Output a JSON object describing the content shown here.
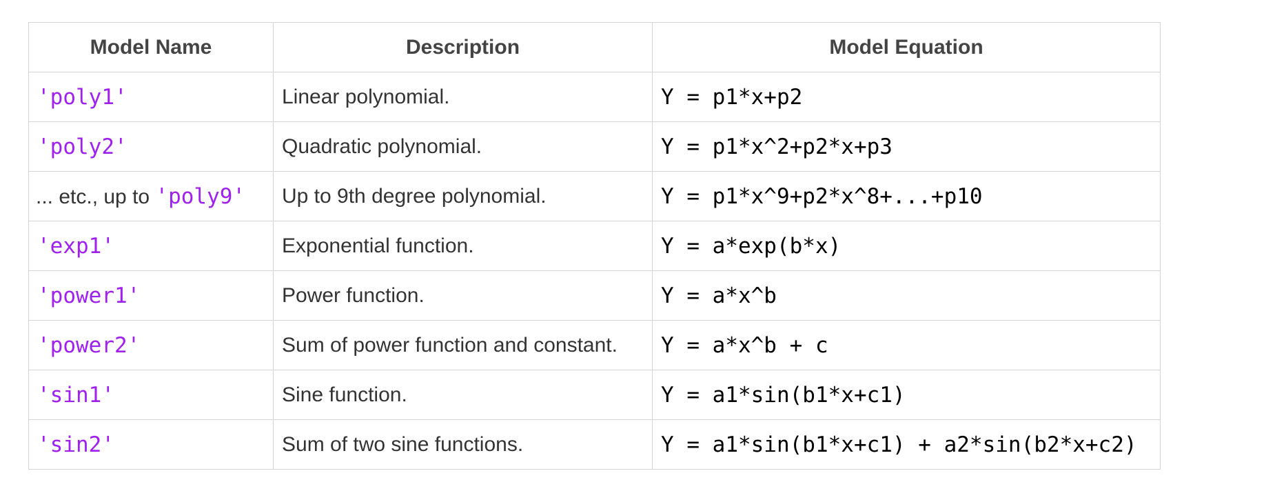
{
  "table": {
    "headers": {
      "model_name": "Model Name",
      "description": "Description",
      "equation": "Model Equation"
    },
    "rows": [
      {
        "prefix": "",
        "name": "'poly1'",
        "description": "Linear polynomial.",
        "equation": "Y = p1*x+p2"
      },
      {
        "prefix": "",
        "name": "'poly2'",
        "description": "Quadratic polynomial.",
        "equation": "Y = p1*x^2+p2*x+p3"
      },
      {
        "prefix": "... etc., up to ",
        "name": "'poly9'",
        "description": "Up to 9th degree polynomial.",
        "equation": "Y = p1*x^9+p2*x^8+...+p10"
      },
      {
        "prefix": "",
        "name": "'exp1'",
        "description": "Exponential function.",
        "equation": "Y = a*exp(b*x)"
      },
      {
        "prefix": "",
        "name": "'power1'",
        "description": "Power function.",
        "equation": "Y = a*x^b"
      },
      {
        "prefix": "",
        "name": "'power2'",
        "description": "Sum of power function and constant.",
        "equation": "Y = a*x^b + c"
      },
      {
        "prefix": "",
        "name": "'sin1'",
        "description": "Sine function.",
        "equation": "Y = a1*sin(b1*x+c1)"
      },
      {
        "prefix": "",
        "name": "'sin2'",
        "description": "Sum of two sine functions.",
        "equation": "Y = a1*sin(b1*x+c1) + a2*sin(b2*x+c2)"
      }
    ]
  },
  "colors": {
    "code": "#a020f0",
    "text": "#333333",
    "border": "#d4d4d4"
  }
}
